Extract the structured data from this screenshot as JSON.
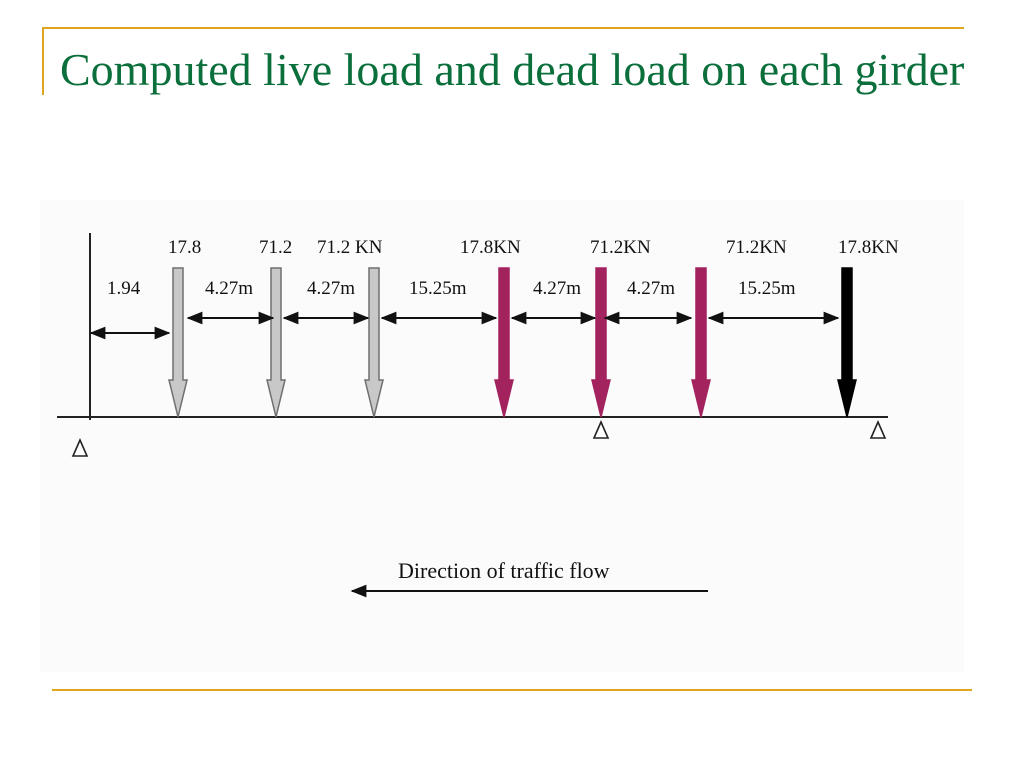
{
  "slide": {
    "title": "Computed live load and dead load on each girder"
  },
  "loads": [
    {
      "label": "17.8",
      "color": "#c8c8c8"
    },
    {
      "label": "71.2",
      "color": "#c8c8c8"
    },
    {
      "label": "71.2 KN",
      "color": "#c8c8c8"
    },
    {
      "label": "17.8KN",
      "color": "#a3235f"
    },
    {
      "label": "71.2KN",
      "color": "#a3235f"
    },
    {
      "label": "71.2KN",
      "color": "#a3235f"
    },
    {
      "label": "17.8KN",
      "color": "#000000"
    }
  ],
  "spacings": [
    "1.94",
    "4.27m",
    "4.27m",
    "15.25m",
    "4.27m",
    "4.27m",
    "15.25m"
  ],
  "traffic": {
    "label": "Direction of traffic flow"
  }
}
